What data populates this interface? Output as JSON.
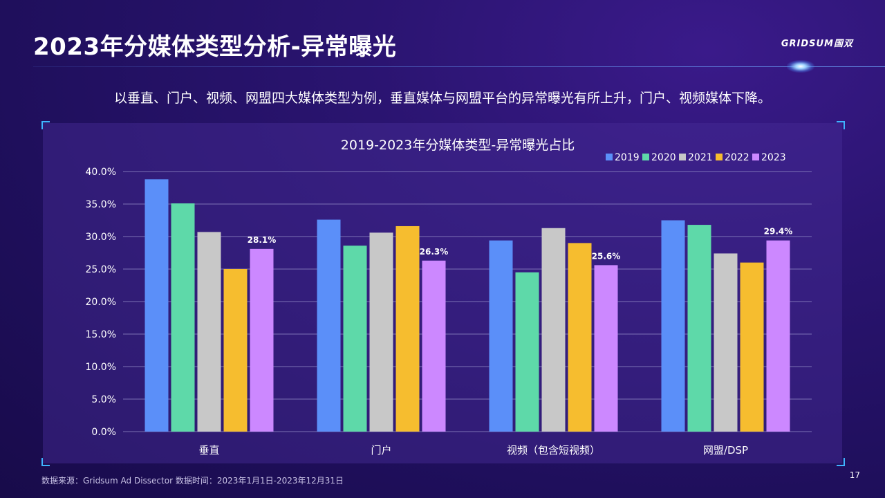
{
  "page": {
    "title": "2023年分媒体类型分析-异常曝光",
    "logo": "GRIDSUM国双",
    "subtitle": "以垂直、门户、视频、网盟四大媒体类型为例，垂直媒体与网盟平台的异常曝光有所上升，门户、视频媒体下降。",
    "source": "数据来源：Gridsum Ad Dissector 数据时间：2023年1月1日-2023年12月31日",
    "page_number": "17"
  },
  "colors": {
    "series": [
      "#5b8ff9",
      "#5ed9a9",
      "#c8c8c8",
      "#f6bd2f",
      "#cc88ff"
    ],
    "gridline": "#8f88c4",
    "text": "#ffffff"
  },
  "chart_data": {
    "type": "bar",
    "title": "2019-2023年分媒体类型-异常曝光占比",
    "categories": [
      "垂直",
      "门户",
      "视频（包含短视频）",
      "网盟/DSP"
    ],
    "series": [
      {
        "name": "2019",
        "values": [
          38.8,
          32.6,
          29.4,
          32.5
        ]
      },
      {
        "name": "2020",
        "values": [
          35.1,
          28.6,
          24.5,
          31.8
        ]
      },
      {
        "name": "2021",
        "values": [
          30.7,
          30.6,
          31.3,
          27.4
        ]
      },
      {
        "name": "2022",
        "values": [
          25.0,
          31.6,
          29.0,
          26.0
        ]
      },
      {
        "name": "2023",
        "values": [
          28.1,
          26.3,
          25.6,
          29.4
        ]
      }
    ],
    "data_labels": {
      "series": "2023",
      "labels": [
        "28.1%",
        "26.3%",
        "25.6%",
        "29.4%"
      ]
    },
    "ylim": [
      0,
      40
    ],
    "yticks": [
      0,
      5,
      10,
      15,
      20,
      25,
      30,
      35,
      40
    ],
    "ytick_labels": [
      "0.0%",
      "5.0%",
      "10.0%",
      "15.0%",
      "20.0%",
      "25.0%",
      "30.0%",
      "35.0%",
      "40.0%"
    ],
    "grid": true,
    "legend_position": "top-right"
  }
}
